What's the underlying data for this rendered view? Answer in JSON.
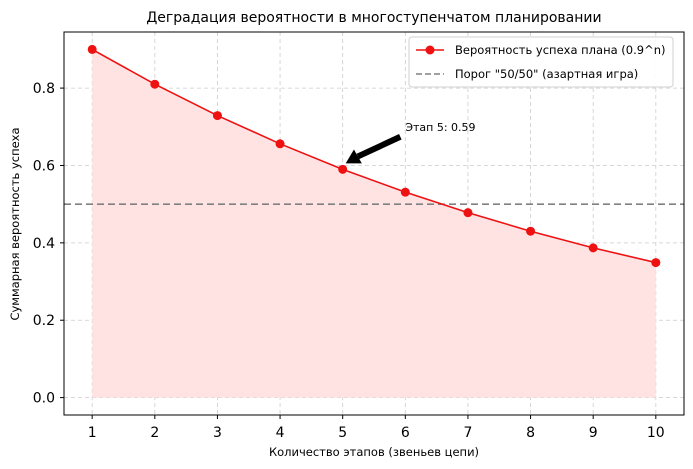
{
  "chart_data": {
    "type": "line",
    "title": "Деградация вероятности в многоступенчатом планировании",
    "xlabel": "Количество этапов (звеньев цепи)",
    "ylabel": "Суммарная вероятность успеха",
    "x": [
      1,
      2,
      3,
      4,
      5,
      6,
      7,
      8,
      9,
      10
    ],
    "series": [
      {
        "name": "Вероятность успеха плана (0.9^n)",
        "values": [
          0.9,
          0.81,
          0.729,
          0.656,
          0.59,
          0.531,
          0.478,
          0.43,
          0.387,
          0.349
        ],
        "color": "#ee1111",
        "fill": "#ffe3e3"
      }
    ],
    "threshold": {
      "name": "Порог \"50/50\" (азартная игра)",
      "value": 0.5,
      "color": "#808080"
    },
    "annotation": {
      "text": "Этап 5: 0.59",
      "x": 5,
      "y": 0.59
    },
    "xlim": [
      0.55,
      10.45
    ],
    "ylim": [
      -0.045,
      0.945
    ],
    "xticks": [
      "1",
      "2",
      "3",
      "4",
      "5",
      "6",
      "7",
      "8",
      "9",
      "10"
    ],
    "yticks": [
      "0.0",
      "0.2",
      "0.4",
      "0.6",
      "0.8"
    ],
    "grid": true,
    "legend_position": "top-right"
  }
}
